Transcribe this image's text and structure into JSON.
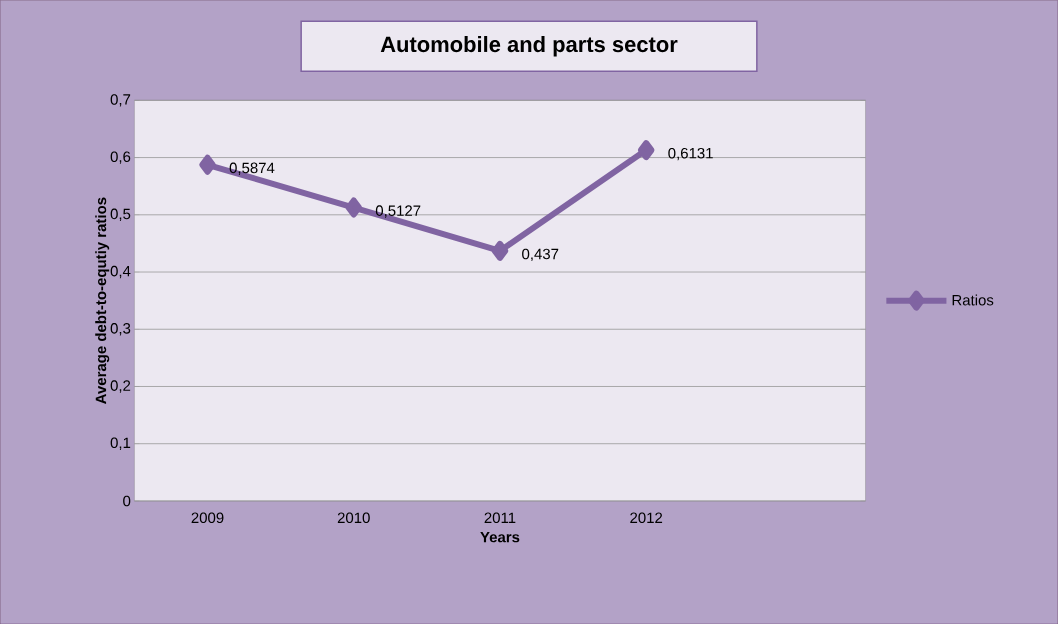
{
  "chart_data": {
    "type": "line",
    "title": "Automobile and parts sector",
    "xlabel": "Years",
    "ylabel": "Average debt-to-equtiy ratios",
    "categories": [
      "2009",
      "2010",
      "2011",
      "2012",
      null
    ],
    "series": [
      {
        "name": "Ratios",
        "color": "#8064a2",
        "values": [
          0.5874,
          0.5127,
          0.437,
          0.6131,
          null
        ],
        "value_labels": [
          "0,5874",
          "0,5127",
          "0,437",
          "0,6131",
          null
        ]
      }
    ],
    "ylim": [
      0,
      0.7
    ],
    "yticks": [
      {
        "value": 0,
        "label": "0"
      },
      {
        "value": 0.1,
        "label": "0,1"
      },
      {
        "value": 0.2,
        "label": "0,2"
      },
      {
        "value": 0.3,
        "label": "0,3"
      },
      {
        "value": 0.4,
        "label": "0,4"
      },
      {
        "value": 0.5,
        "label": "0,5"
      },
      {
        "value": 0.6,
        "label": "0,6"
      },
      {
        "value": 0.7,
        "label": "0,7"
      }
    ],
    "grid": "y",
    "legend": "right",
    "marker": "diamond",
    "line_style": "solid"
  }
}
